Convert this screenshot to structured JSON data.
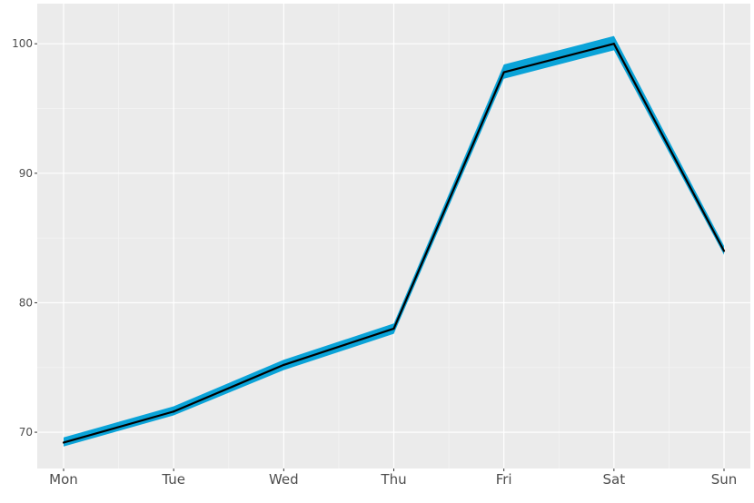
{
  "chart_data": {
    "type": "line",
    "title": "",
    "xlabel": "",
    "ylabel": "",
    "categories": [
      "Mon",
      "Tue",
      "Wed",
      "Thu",
      "Fri",
      "Sat",
      "Sun"
    ],
    "series": [
      {
        "values": [
          69.2,
          71.6,
          75.2,
          78.0,
          97.8,
          100.0,
          84.0
        ],
        "lower": [
          68.9,
          71.3,
          74.8,
          77.6,
          97.3,
          99.5,
          83.7
        ],
        "upper": [
          69.6,
          72.0,
          75.6,
          78.4,
          98.4,
          100.6,
          84.4
        ]
      }
    ],
    "y_ticks": [
      70,
      80,
      90,
      100
    ],
    "ylim": [
      67.2,
      103.1
    ],
    "grid": true,
    "legend": "none",
    "colors": {
      "panel": "#ebebeb",
      "grid_major": "#ffffff",
      "grid_minor": "#f4f4f4",
      "band": "#0aa3d8",
      "line": "#000000"
    }
  }
}
